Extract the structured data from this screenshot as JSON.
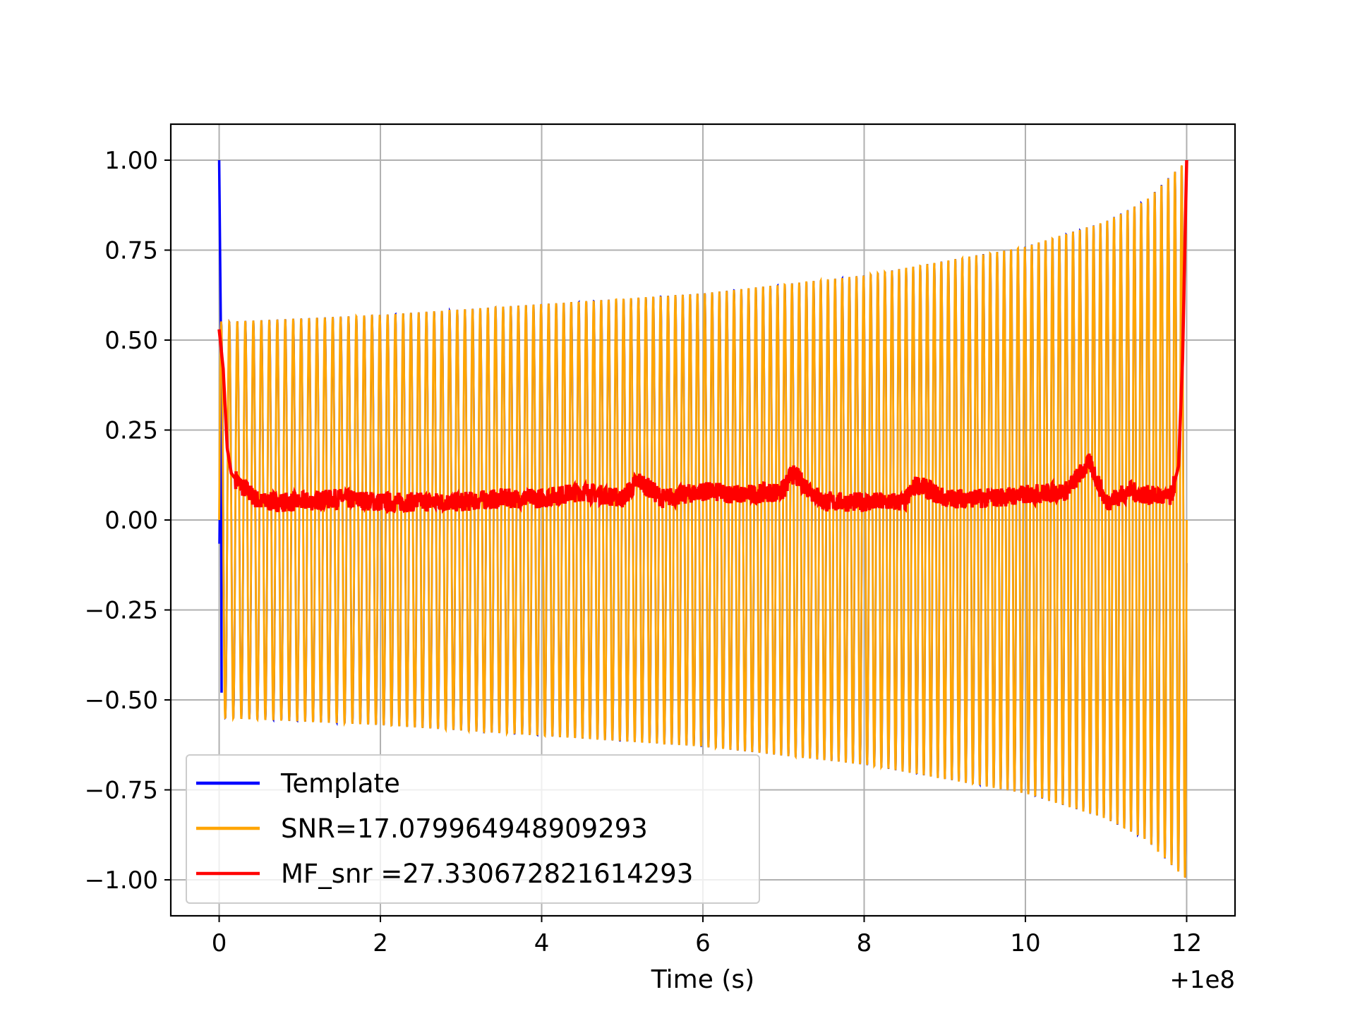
{
  "chart_data": {
    "type": "line",
    "title": "",
    "xlabel": "Time (s)",
    "ylabel": "",
    "x_offset_text": "+1e8",
    "xlim": [
      99999999.4,
      100000012.6
    ],
    "ylim": [
      -1.1,
      1.1
    ],
    "x_ticks": [
      100000000,
      100000002,
      100000004,
      100000006,
      100000008,
      100000010,
      100000012
    ],
    "x_tick_labels": [
      "0",
      "2",
      "4",
      "6",
      "8",
      "10",
      "12"
    ],
    "y_ticks": [
      -1.0,
      -0.75,
      -0.5,
      -0.25,
      0.0,
      0.25,
      0.5,
      0.75,
      1.0
    ],
    "y_tick_labels": [
      "−1.00",
      "−0.75",
      "−0.50",
      "−0.25",
      "0.00",
      "0.25",
      "0.50",
      "0.75",
      "1.00"
    ],
    "grid": true,
    "legend_position": "bottom-left",
    "series": [
      {
        "name": "Template",
        "color": "#0000ff",
        "description": "chirp waveform starting at x=100000000, spike to 1.0 at start, oscillation envelope growing to 1.0 at x=100000012",
        "start_spike": [
          [
            100000000.0,
            1.0
          ],
          [
            100000000.02,
            0.55
          ],
          [
            100000000.03,
            -0.48
          ]
        ],
        "envelope": [
          [
            100000000.0,
            0.55
          ],
          [
            100000002.0,
            0.57
          ],
          [
            100000004.0,
            0.6
          ],
          [
            100000006.0,
            0.63
          ],
          [
            100000008.0,
            0.68
          ],
          [
            100000010.0,
            0.76
          ],
          [
            100000011.0,
            0.83
          ],
          [
            100000011.5,
            0.89
          ],
          [
            100000012.0,
            1.0
          ]
        ]
      },
      {
        "name": "SNR=17.079964948909293",
        "color": "#ffa500",
        "envelope": [
          [
            100000000.0,
            0.55
          ],
          [
            100000002.0,
            0.57
          ],
          [
            100000004.0,
            0.6
          ],
          [
            100000006.0,
            0.63
          ],
          [
            100000008.0,
            0.68
          ],
          [
            100000010.0,
            0.76
          ],
          [
            100000011.0,
            0.83
          ],
          [
            100000011.5,
            0.89
          ],
          [
            100000012.0,
            1.0
          ]
        ],
        "cycles": 120
      },
      {
        "name": "MF_snr =27.330672821614293",
        "color": "#ff0000",
        "points": [
          [
            100000000.0,
            0.53
          ],
          [
            100000000.05,
            0.42
          ],
          [
            100000000.1,
            0.2
          ],
          [
            100000000.15,
            0.13
          ],
          [
            100000000.25,
            0.1
          ],
          [
            100000000.5,
            0.05
          ],
          [
            100000001.0,
            0.05
          ],
          [
            100000001.5,
            0.06
          ],
          [
            100000002.0,
            0.05
          ],
          [
            100000002.5,
            0.05
          ],
          [
            100000003.0,
            0.05
          ],
          [
            100000003.5,
            0.06
          ],
          [
            100000004.0,
            0.06
          ],
          [
            100000004.5,
            0.08
          ],
          [
            100000005.0,
            0.06
          ],
          [
            100000005.2,
            0.11
          ],
          [
            100000005.5,
            0.06
          ],
          [
            100000006.0,
            0.08
          ],
          [
            100000006.5,
            0.07
          ],
          [
            100000007.0,
            0.08
          ],
          [
            100000007.1,
            0.13
          ],
          [
            100000007.5,
            0.05
          ],
          [
            100000008.0,
            0.05
          ],
          [
            100000008.5,
            0.05
          ],
          [
            100000008.65,
            0.1
          ],
          [
            100000009.0,
            0.06
          ],
          [
            100000009.5,
            0.06
          ],
          [
            100000010.0,
            0.07
          ],
          [
            100000010.5,
            0.08
          ],
          [
            100000010.8,
            0.16
          ],
          [
            100000011.0,
            0.05
          ],
          [
            100000011.3,
            0.08
          ],
          [
            100000011.5,
            0.07
          ],
          [
            100000011.8,
            0.06
          ],
          [
            100000011.9,
            0.15
          ],
          [
            100000011.95,
            0.45
          ],
          [
            100000012.0,
            1.0
          ]
        ]
      }
    ]
  }
}
